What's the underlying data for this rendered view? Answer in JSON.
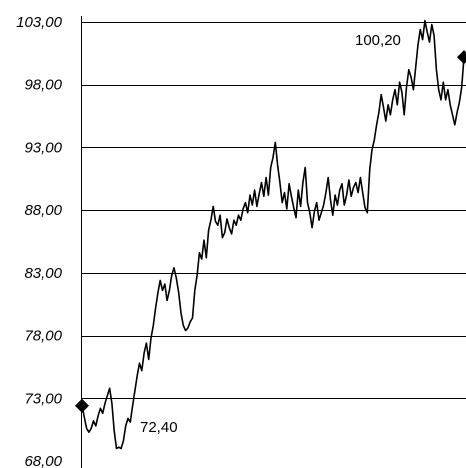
{
  "chart_data": {
    "type": "line",
    "title": "",
    "xlabel": "",
    "ylabel": "",
    "ylim": [
      68,
      104
    ],
    "grid": true,
    "legend": "none",
    "yticks": [
      68,
      73,
      78,
      83,
      88,
      93,
      98,
      103
    ],
    "ytick_labels": [
      "68,00",
      "73,00",
      "78,00",
      "83,00",
      "88,00",
      "93,00",
      "98,00",
      "103,00"
    ],
    "series": [
      {
        "values": [
          72.4,
          71.5,
          70.6,
          70.3,
          70.6,
          71.2,
          70.8,
          71.6,
          72.2,
          71.8,
          72.6,
          73.2,
          73.8,
          72.6,
          70.4,
          69.0,
          69.1,
          69.0,
          69.6,
          70.8,
          71.4,
          71.1,
          72.4,
          73.6,
          74.8,
          75.8,
          75.2,
          76.6,
          77.4,
          76.1,
          77.8,
          78.8,
          80.2,
          81.4,
          82.4,
          81.6,
          82.1,
          80.8,
          81.6,
          82.8,
          83.4,
          82.6,
          81.4,
          79.8,
          78.8,
          78.4,
          78.6,
          79.1,
          79.4,
          81.6,
          82.8,
          84.6,
          84.1,
          85.6,
          84.2,
          86.4,
          87.2,
          88.3,
          87.1,
          86.8,
          87.6,
          85.8,
          86.2,
          87.3,
          86.6,
          86.1,
          87.2,
          86.8,
          87.6,
          87.2,
          88.1,
          88.6,
          87.8,
          89.2,
          88.4,
          89.6,
          88.3,
          89.3,
          90.2,
          89.1,
          90.6,
          89.2,
          91.4,
          92.2,
          93.4,
          91.6,
          90.2,
          88.6,
          89.4,
          88.1,
          90.1,
          89.1,
          88.2,
          87.4,
          89.6,
          88.3,
          90.2,
          91.4,
          88.6,
          87.8,
          86.6,
          87.9,
          88.6,
          87.2,
          87.8,
          88.4,
          89.4,
          90.6,
          88.8,
          87.6,
          89.2,
          88.4,
          89.6,
          90.1,
          88.4,
          89.2,
          90.4,
          89.1,
          89.8,
          90.2,
          89.4,
          90.6,
          89.4,
          88.2,
          87.8,
          91.2,
          92.8,
          93.6,
          94.8,
          95.8,
          97.2,
          96.2,
          95.1,
          96.4,
          95.6,
          96.8,
          97.6,
          96.4,
          98.2,
          97.4,
          95.6,
          97.8,
          99.2,
          98.6,
          97.6,
          99.4,
          101.2,
          102.4,
          101.6,
          103.1,
          102.2,
          101.4,
          102.8,
          101.9,
          99.2,
          97.6,
          96.8,
          98.2,
          96.8,
          97.6,
          96.4,
          95.6,
          94.8,
          95.8,
          96.6,
          97.8,
          100.2
        ]
      }
    ],
    "annotations": [
      {
        "text": "72,40",
        "point": "start"
      },
      {
        "text": "100,20",
        "point": "end"
      }
    ]
  }
}
